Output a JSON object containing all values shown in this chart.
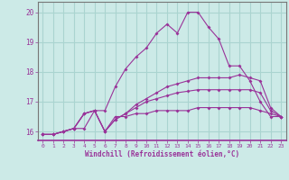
{
  "background_color": "#cceae7",
  "grid_color": "#aad4d0",
  "line_color": "#993399",
  "marker": "D",
  "xlabel": "Windchill (Refroidissement éolien,°C)",
  "xlabel_color": "#993399",
  "ylim": [
    15.7,
    20.35
  ],
  "xlim": [
    -0.5,
    23.5
  ],
  "yticks": [
    16,
    17,
    18,
    19,
    20
  ],
  "xticks": [
    0,
    1,
    2,
    3,
    4,
    5,
    6,
    7,
    8,
    9,
    10,
    11,
    12,
    13,
    14,
    15,
    16,
    17,
    18,
    19,
    20,
    21,
    22,
    23
  ],
  "series": [
    [
      15.9,
      15.9,
      16.0,
      16.1,
      16.1,
      16.7,
      16.7,
      17.5,
      18.1,
      18.5,
      18.8,
      19.3,
      19.6,
      19.3,
      20.0,
      20.0,
      19.5,
      19.1,
      18.2,
      18.2,
      17.7,
      17.0,
      16.5,
      16.5
    ],
    [
      15.9,
      15.9,
      16.0,
      16.1,
      16.6,
      16.7,
      16.0,
      16.5,
      16.5,
      16.6,
      16.6,
      16.7,
      16.7,
      16.7,
      16.7,
      16.8,
      16.8,
      16.8,
      16.8,
      16.8,
      16.8,
      16.7,
      16.6,
      16.5
    ],
    [
      15.9,
      15.9,
      16.0,
      16.1,
      16.6,
      16.7,
      16.0,
      16.4,
      16.6,
      16.9,
      17.1,
      17.3,
      17.5,
      17.6,
      17.7,
      17.8,
      17.8,
      17.8,
      17.8,
      17.9,
      17.8,
      17.7,
      16.8,
      16.5
    ],
    [
      15.9,
      15.9,
      16.0,
      16.1,
      16.6,
      16.7,
      16.0,
      16.4,
      16.6,
      16.8,
      17.0,
      17.1,
      17.2,
      17.3,
      17.35,
      17.4,
      17.4,
      17.4,
      17.4,
      17.4,
      17.4,
      17.3,
      16.7,
      16.5
    ]
  ]
}
